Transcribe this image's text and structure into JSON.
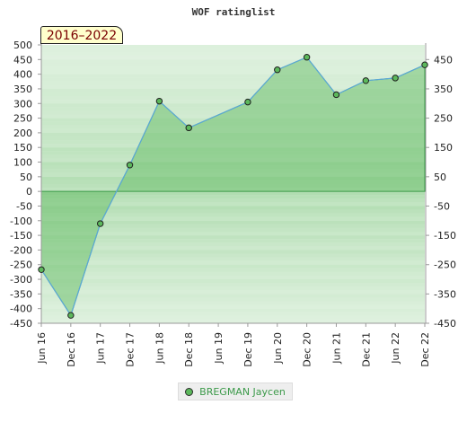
{
  "chart_data": {
    "type": "area",
    "title": "WOF ratinglist",
    "period": "2016–2022",
    "x": [
      "Jun 16",
      "Dec 16",
      "Jun 17",
      "Dec 17",
      "Jun 18",
      "Dec 18",
      "Jun 19",
      "Dec 19",
      "Jun 20",
      "Dec 20",
      "Jun 21",
      "Dec 21",
      "Jun 22",
      "Dec 22"
    ],
    "ylim": [
      -450,
      500
    ],
    "y_ticks_left": [
      500,
      450,
      400,
      350,
      300,
      250,
      200,
      150,
      100,
      50,
      0,
      -50,
      -100,
      -150,
      -200,
      -250,
      -300,
      -350,
      -400,
      -450
    ],
    "y_ticks_right": [
      450,
      350,
      250,
      150,
      50,
      -50,
      -150,
      -250,
      -350,
      -450
    ],
    "series": [
      {
        "name": "BREGMAN Jaycen",
        "points": [
          {
            "x": "Jun 16",
            "y": -267
          },
          {
            "x": "Dec 16",
            "y": -423
          },
          {
            "x": "Jun 17",
            "y": -110
          },
          {
            "x": "Dec 17",
            "y": 90
          },
          {
            "x": "Jun 18",
            "y": 308
          },
          {
            "x": "Dec 18",
            "y": 217
          },
          {
            "x": "Dec 19",
            "y": 305
          },
          {
            "x": "Jun 20",
            "y": 415
          },
          {
            "x": "Dec 20",
            "y": 458
          },
          {
            "x": "Jun 21",
            "y": 330
          },
          {
            "x": "Dec 21",
            "y": 378
          },
          {
            "x": "Jun 22",
            "y": 387
          },
          {
            "x": "Dec 22",
            "y": 432
          }
        ]
      }
    ],
    "grid": true,
    "legend_position": "bottom",
    "colors": {
      "fill": "#5cb85c",
      "line": "#5ba8d8",
      "marker": "#5cb85c",
      "legend_text": "#3c9a4a",
      "badge_text": "#7a0000",
      "badge_bg": "#ffffcc"
    }
  }
}
